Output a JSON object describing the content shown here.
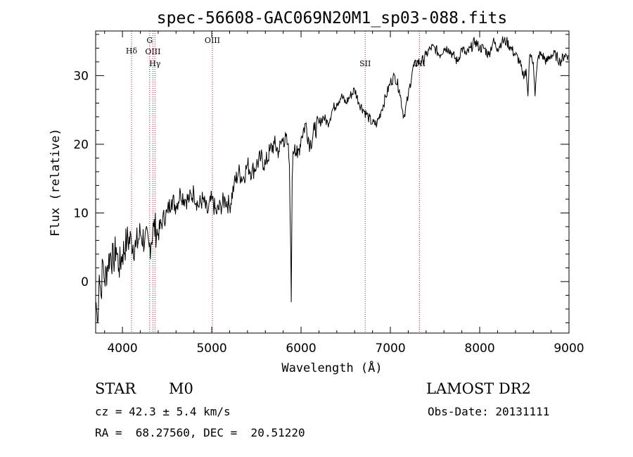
{
  "chart_data": {
    "type": "line",
    "title": "spec-56608-GAC069N20M1_sp03-088.fits",
    "xlabel": "Wavelength (Å)",
    "ylabel": "Flux (relative)",
    "xlim": [
      3700,
      9000
    ],
    "ylim": [
      -7.5,
      36.5
    ],
    "xticks": [
      4000,
      5000,
      6000,
      7000,
      8000,
      9000
    ],
    "yticks": [
      0,
      10,
      20,
      30
    ],
    "lines": [
      {
        "label": "Hδ",
        "wavelength": 4102
      },
      {
        "label": "G",
        "wavelength": 4305
      },
      {
        "label": "OIII",
        "wavelength": 4341
      },
      {
        "label": "Hγ",
        "wavelength": 4364
      },
      {
        "label": "OIII",
        "wavelength": 5007
      },
      {
        "label": "SII",
        "wavelength": 6718
      },
      {
        "label": "OII",
        "wavelength": 7325
      }
    ],
    "series": [
      {
        "name": "spectrum",
        "x": [
          3705,
          3720,
          3740,
          3760,
          3780,
          3800,
          3830,
          3860,
          3900,
          3930,
          3960,
          4000,
          4050,
          4100,
          4150,
          4200,
          4250,
          4300,
          4350,
          4400,
          4450,
          4500,
          4550,
          4600,
          4650,
          4700,
          4750,
          4800,
          4850,
          4900,
          4950,
          5000,
          5050,
          5100,
          5150,
          5200,
          5250,
          5300,
          5350,
          5400,
          5450,
          5500,
          5550,
          5600,
          5650,
          5700,
          5750,
          5800,
          5850,
          5870,
          5880,
          5890,
          5895,
          5900,
          5910,
          5930,
          5960,
          6000,
          6050,
          6100,
          6150,
          6200,
          6250,
          6300,
          6350,
          6400,
          6450,
          6500,
          6550,
          6600,
          6650,
          6700,
          6750,
          6800,
          6850,
          6900,
          6950,
          7000,
          7050,
          7100,
          7150,
          7200,
          7250,
          7300,
          7350,
          7400,
          7450,
          7500,
          7550,
          7600,
          7650,
          7700,
          7750,
          7800,
          7850,
          7900,
          7950,
          8000,
          8050,
          8100,
          8150,
          8200,
          8250,
          8300,
          8350,
          8400,
          8450,
          8480,
          8500,
          8520,
          8540,
          8560,
          8580,
          8600,
          8620,
          8640,
          8660,
          8700,
          8750,
          8800,
          8850,
          8900,
          8950,
          8990
        ],
        "y": [
          -3,
          -6,
          1,
          -2,
          3,
          0,
          2,
          4,
          3,
          5,
          2,
          4,
          6,
          6,
          5,
          7,
          6,
          5,
          8,
          7,
          9,
          10,
          12,
          11,
          13,
          12,
          12,
          13,
          11,
          12,
          10,
          12,
          10,
          11,
          12,
          11,
          14,
          16,
          15,
          17,
          16,
          17,
          18,
          17,
          19,
          20,
          19,
          21,
          20,
          17,
          8,
          -3,
          5,
          15,
          19,
          20,
          18,
          21,
          23,
          20,
          22,
          23,
          24,
          23,
          25,
          26,
          27,
          26,
          27,
          28,
          26,
          25,
          24,
          23,
          23,
          25,
          27,
          29,
          30,
          28,
          24,
          27,
          31,
          32,
          32,
          33,
          34,
          34,
          33,
          34,
          34,
          33,
          32,
          34,
          33,
          34,
          35,
          34,
          34,
          33,
          35,
          34,
          35,
          35,
          34,
          33,
          32,
          30,
          30,
          31,
          27,
          33,
          33,
          32,
          27,
          31,
          33,
          33,
          32,
          33,
          33,
          32,
          33,
          33
        ]
      }
    ]
  },
  "info": {
    "object_class": "STAR",
    "subclass": "M0",
    "survey": "LAMOST DR2",
    "velocity": "cz = 42.3 ± 5.4 km/s",
    "obs_date": "Obs-Date: 20131111",
    "coords": "RA =  68.27560, DEC =  20.51220"
  }
}
